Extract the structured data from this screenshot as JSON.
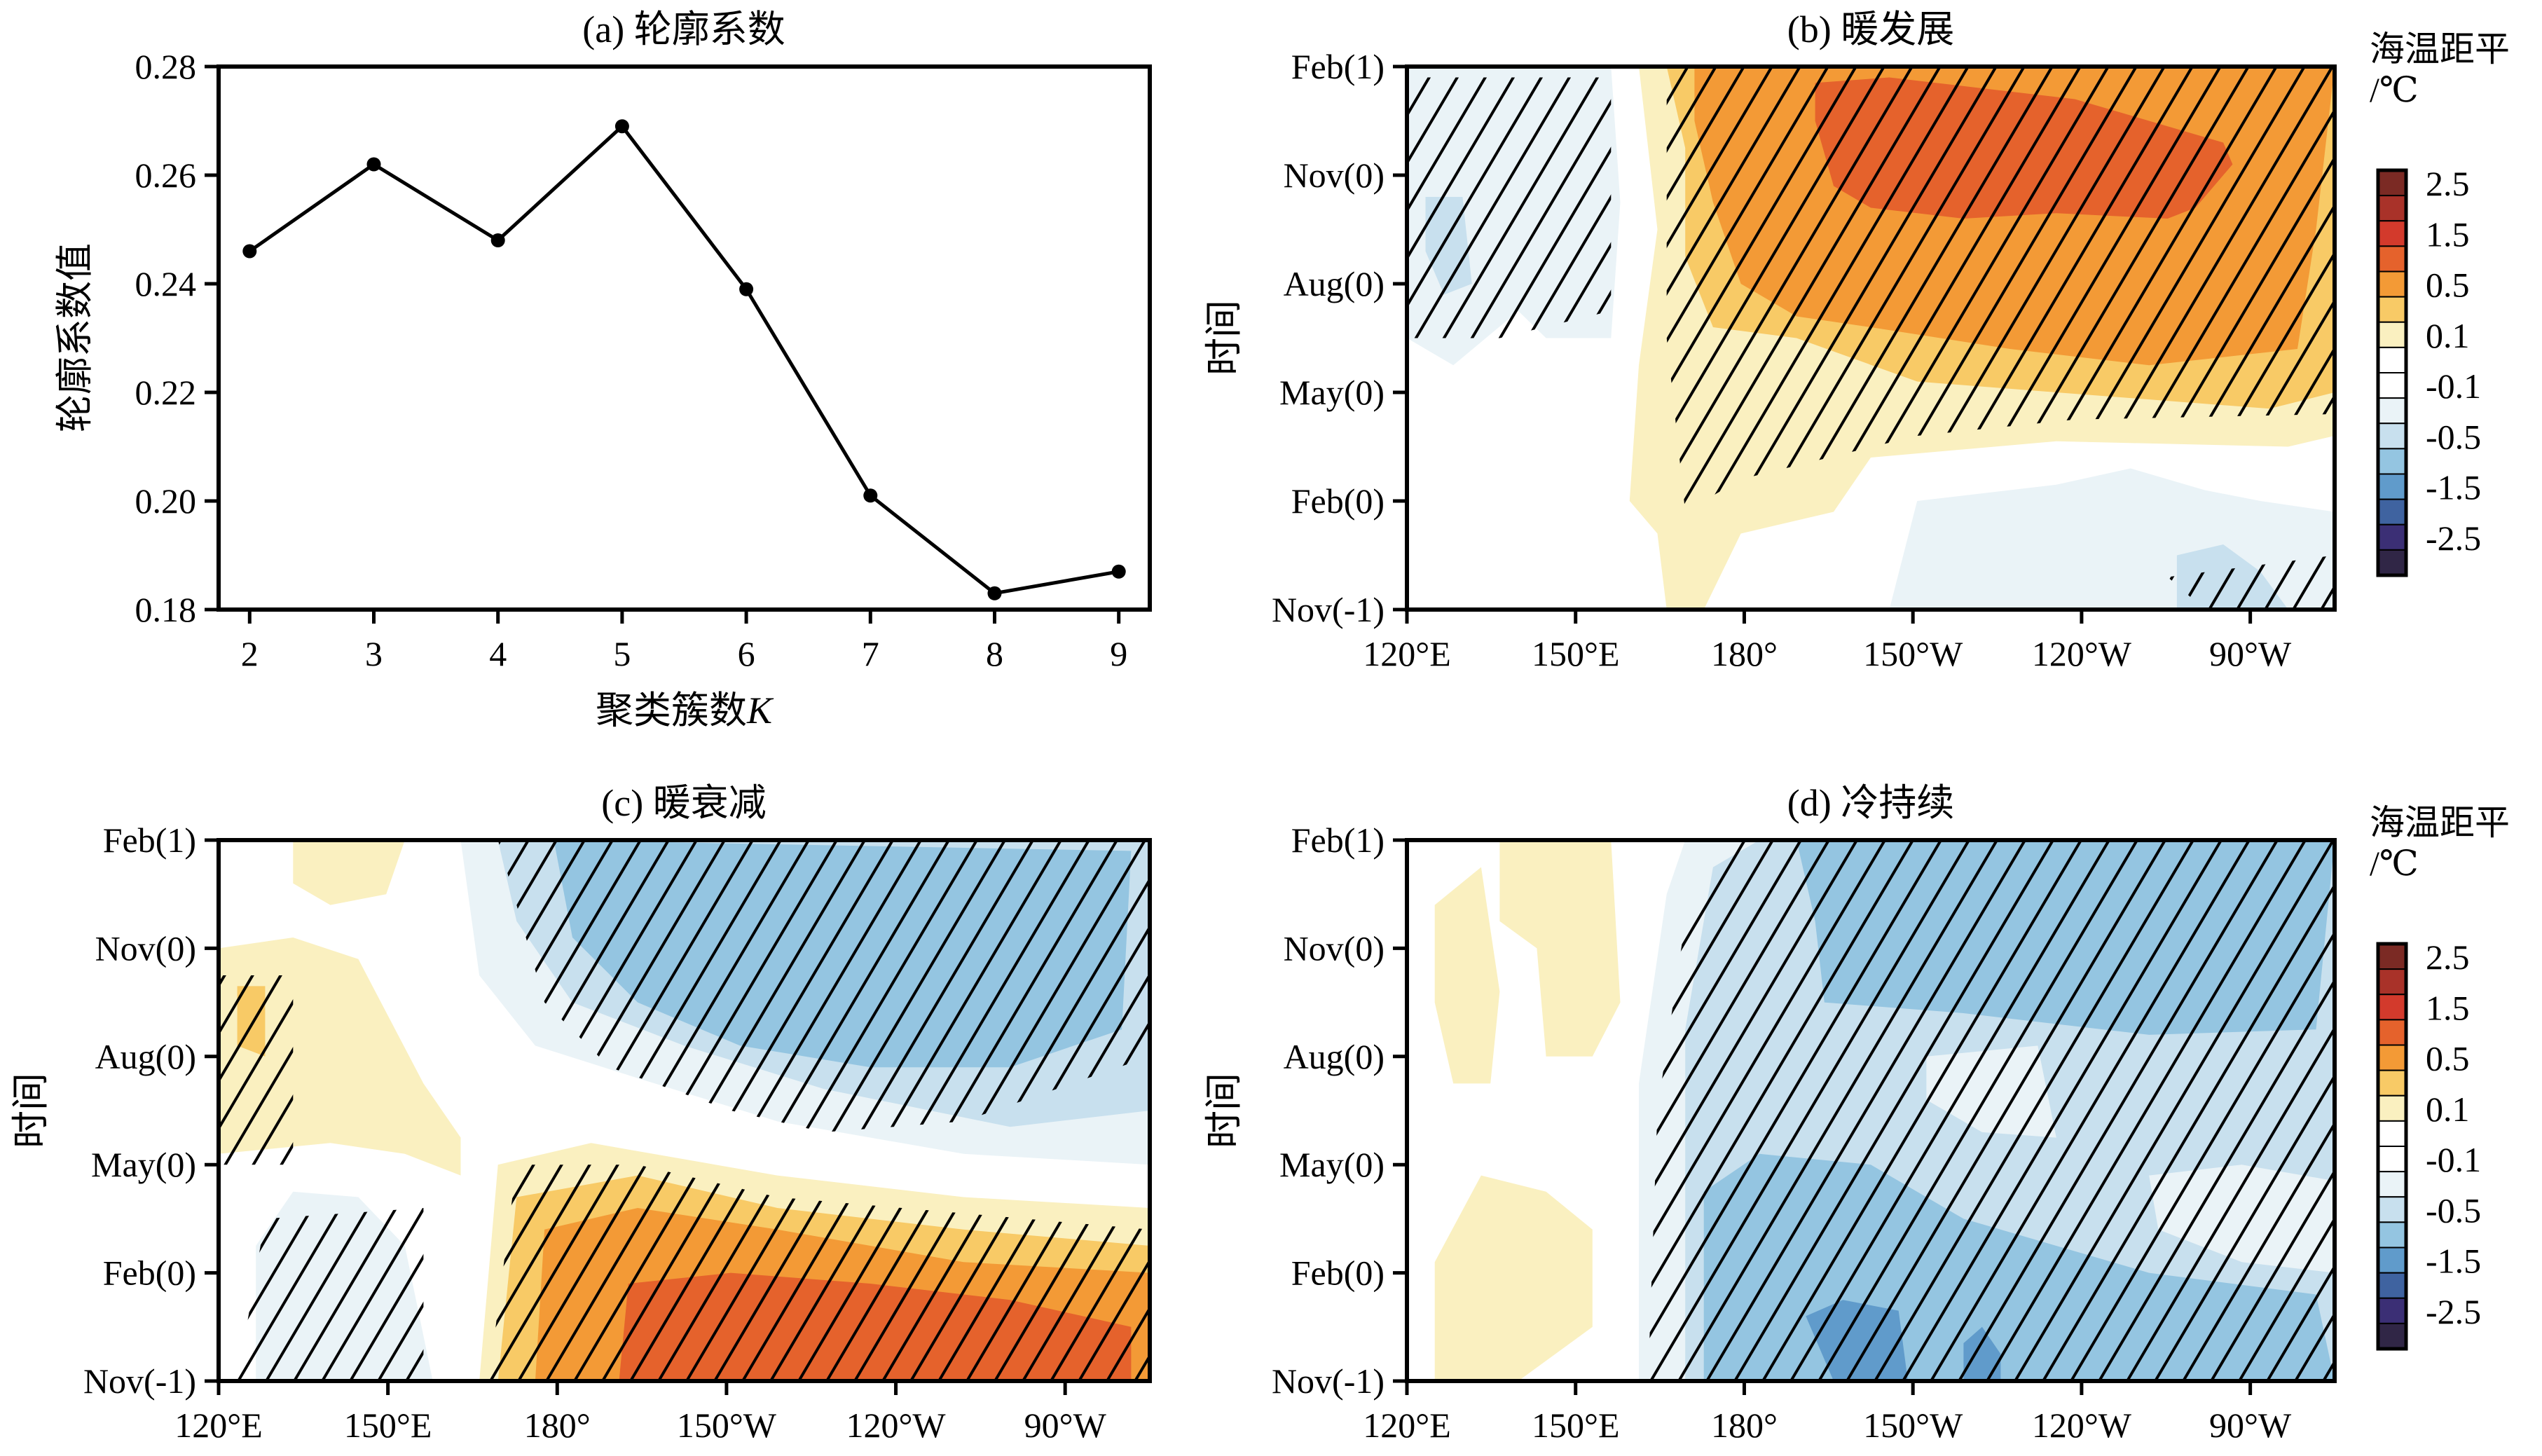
{
  "figure": {
    "panels": [
      "a",
      "b",
      "c",
      "d"
    ]
  },
  "chart_data": [
    {
      "id": "a",
      "type": "line",
      "title": "(a) 轮廓系数",
      "xlabel": "聚类簇数K",
      "xlabel_main": "聚类簇数",
      "xlabel_italic": "K",
      "ylabel": "轮廓系数值",
      "x": [
        2,
        3,
        4,
        5,
        6,
        7,
        8,
        9
      ],
      "values": [
        0.246,
        0.262,
        0.248,
        0.269,
        0.239,
        0.201,
        0.183,
        0.187
      ],
      "xlim": [
        1.75,
        9.25
      ],
      "ylim": [
        0.18,
        0.28
      ],
      "xticks": [
        "2",
        "3",
        "4",
        "5",
        "6",
        "7",
        "8",
        "9"
      ],
      "yticks": [
        "0.18",
        "0.20",
        "0.22",
        "0.24",
        "0.26",
        "0.28"
      ],
      "ytick_values": [
        0.18,
        0.2,
        0.22,
        0.24,
        0.26,
        0.28
      ],
      "marker": "circle",
      "color": "#000000",
      "grid": false
    },
    {
      "id": "b",
      "type": "heatmap",
      "title": "(b) 暖发展",
      "ylabel": "时间",
      "xticks": [
        "120°E",
        "150°E",
        "180°",
        "150°W",
        "120°W",
        "90°W"
      ],
      "xtick_lon": [
        120,
        150,
        180,
        210,
        240,
        270
      ],
      "xlim_lon": [
        120,
        285
      ],
      "yticks": [
        "Feb(1)",
        "Nov(0)",
        "Aug(0)",
        "May(0)",
        "Feb(0)",
        "Nov(-1)"
      ],
      "description": "Warm SST anomaly developing from May(0) and peaking around Nov(0) over central–eastern Pacific (>1.0 °C near 170°W–110°W); weak cold anomalies west of 155°E and in the southeast at Nov(-1); hatching marks significant area",
      "has_colorbar": true
    },
    {
      "id": "c",
      "type": "heatmap",
      "title": "(c) 暖衰减",
      "ylabel": "时间",
      "xticks": [
        "120°E",
        "150°E",
        "180°",
        "150°W",
        "120°W",
        "90°W"
      ],
      "xtick_lon": [
        120,
        150,
        180,
        210,
        240,
        270
      ],
      "xlim_lon": [
        120,
        285
      ],
      "yticks": [
        "Feb(1)",
        "Nov(0)",
        "Aug(0)",
        "May(0)",
        "Feb(0)",
        "Nov(-1)"
      ],
      "description": "Strong warm anomaly (>1.0 °C) at Nov(-1)–Feb(0) in central–eastern Pacific decaying by May(0), transitioning to cold anomaly (-0.5 to -1.0 °C) from Aug(0) to Feb(1) east of 175°E; hatching marks significant area",
      "has_colorbar": false
    },
    {
      "id": "d",
      "type": "heatmap",
      "title": "(d) 冷持续",
      "ylabel": "时间",
      "xticks": [
        "120°E",
        "150°E",
        "180°",
        "150°W",
        "120°W",
        "90°W"
      ],
      "xtick_lon": [
        120,
        150,
        180,
        210,
        240,
        270
      ],
      "xlim_lon": [
        120,
        285
      ],
      "yticks": [
        "Feb(1)",
        "Nov(0)",
        "Aug(0)",
        "May(0)",
        "Feb(0)",
        "Nov(-1)"
      ],
      "description": "Persistent cold anomaly (-0.1 to -1.5 °C) across central–eastern Pacific from Nov(-1) to Feb(1), strongest near 160°W at Nov(-1); weak warm patches west of 150°E; hatching marks significant area",
      "has_colorbar": true
    }
  ],
  "colorbar": {
    "title_line1": "海温距平",
    "title_line2": "/℃",
    "tick_labels": [
      "2.5",
      "1.5",
      "0.5",
      "0.1",
      "-0.1",
      "-0.5",
      "-1.5",
      "-2.5"
    ],
    "bins_top_to_bottom": [
      "#7B2A24",
      "#A93229",
      "#D33A2C",
      "#E5622C",
      "#F39A36",
      "#F8CA66",
      "#FAF0C0",
      "#FFFFFF",
      "#FFFFFF",
      "#EAF3F7",
      "#C8E0EE",
      "#94C5E1",
      "#609BCB",
      "#3F63A0",
      "#3B2F75",
      "#302646"
    ]
  }
}
